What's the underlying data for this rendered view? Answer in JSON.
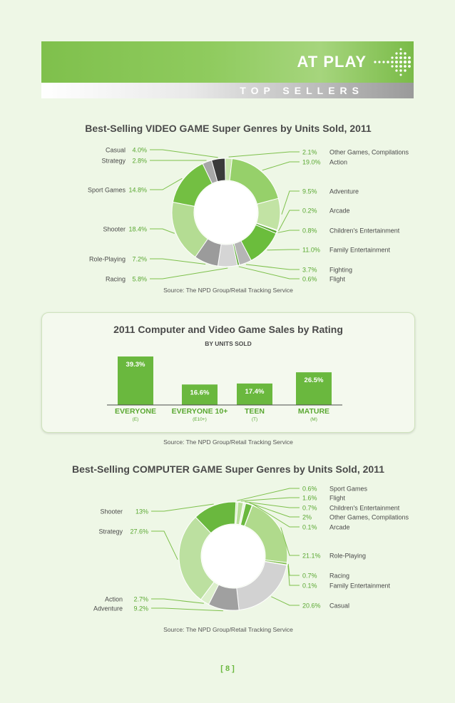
{
  "header": {
    "title": "AT PLAY",
    "subtitle": "TOP SELLERS"
  },
  "colors": {
    "accent": "#7dc04b",
    "dark_green": "#5aa832",
    "light_green": "#b8de98",
    "gray": "#9d9d9d",
    "dark_gray": "#3a3a3a",
    "pale": "#d8ecc6"
  },
  "icons": {
    "header_arrow": "dotted-arrow-icon"
  },
  "chart_data": [
    {
      "type": "pie",
      "title": "Best-Selling VIDEO GAME Super Genres by Units Sold, 2011",
      "source": "Source: The NPD Group/Retail Tracking Service",
      "slices": [
        {
          "label": "Other Games, Compilations",
          "value": 2.1,
          "value_label": "2.1%",
          "color": "#c9e6ad",
          "side": "right"
        },
        {
          "label": "Action",
          "value": 19.0,
          "value_label": "19.0%",
          "color": "#96d06a",
          "side": "right"
        },
        {
          "label": "Adventure",
          "value": 9.5,
          "value_label": "9.5%",
          "color": "#c2e3a4",
          "side": "right"
        },
        {
          "label": "Arcade",
          "value": 0.2,
          "value_label": "0.2%",
          "color": "#e3f2d5",
          "side": "right"
        },
        {
          "label": "Children's Entertainment",
          "value": 0.8,
          "value_label": "0.8%",
          "color": "#5aa832",
          "side": "right"
        },
        {
          "label": "Family Entertainment",
          "value": 11.0,
          "value_label": "11.0%",
          "color": "#6bbd3c",
          "side": "right"
        },
        {
          "label": "Fighting",
          "value": 3.7,
          "value_label": "3.7%",
          "color": "#b5b5b5",
          "side": "right"
        },
        {
          "label": "Flight",
          "value": 0.6,
          "value_label": "0.6%",
          "color": "#5aa832",
          "side": "right"
        },
        {
          "label": "Racing",
          "value": 5.8,
          "value_label": "5.8%",
          "color": "#d5d5d5",
          "side": "left"
        },
        {
          "label": "Role-Playing",
          "value": 7.2,
          "value_label": "7.2%",
          "color": "#9b9b9b",
          "side": "left"
        },
        {
          "label": "Shooter",
          "value": 18.4,
          "value_label": "18.4%",
          "color": "#b4dc93",
          "side": "left"
        },
        {
          "label": "Sport Games",
          "value": 14.8,
          "value_label": "14.8%",
          "color": "#73bf42",
          "side": "left"
        },
        {
          "label": "Strategy",
          "value": 2.8,
          "value_label": "2.8%",
          "color": "#a7a7a7",
          "side": "left"
        },
        {
          "label": "Casual",
          "value": 4.0,
          "value_label": "4.0%",
          "color": "#3a3a3a",
          "side": "left"
        }
      ]
    },
    {
      "type": "bar",
      "title": "2011 Computer and Video Game Sales by Rating",
      "subtitle": "BY UNITS SOLD",
      "source": "Source: The NPD Group/Retail Tracking Service",
      "categories": [
        "EVERYONE",
        "EVERYONE 10+",
        "TEEN",
        "MATURE"
      ],
      "category_codes": [
        "(E)",
        "(E10+)",
        "(T)",
        "(M)"
      ],
      "values": [
        39.3,
        16.6,
        17.4,
        26.5
      ],
      "value_labels": [
        "39.3%",
        "16.6%",
        "17.4%",
        "26.5%"
      ],
      "color": "#6ab83e"
    },
    {
      "type": "pie",
      "title": "Best-Selling COMPUTER GAME Super Genres by Units Sold, 2011",
      "source": "Source: The NPD Group/Retail Tracking Service",
      "slices": [
        {
          "label": "Sport Games",
          "value": 0.6,
          "value_label": "0.6%",
          "color": "#d6ecc3",
          "side": "right"
        },
        {
          "label": "Flight",
          "value": 1.6,
          "value_label": "1.6%",
          "color": "#b9df99",
          "side": "right"
        },
        {
          "label": "Children's Entertainment",
          "value": 0.7,
          "value_label": "0.7%",
          "color": "#e8f4dd",
          "side": "right"
        },
        {
          "label": "Other Games, Compilations",
          "value": 2.0,
          "value_label": "2%",
          "color": "#6ab83e",
          "side": "right"
        },
        {
          "label": "Arcade",
          "value": 0.1,
          "value_label": "0.1%",
          "color": "#5aa832",
          "side": "right"
        },
        {
          "label": "Role-Playing",
          "value": 21.1,
          "value_label": "21.1%",
          "color": "#b0da8c",
          "side": "right"
        },
        {
          "label": "Racing",
          "value": 0.7,
          "value_label": "0.7%",
          "color": "#8cc45e",
          "side": "right"
        },
        {
          "label": "Family Entertainment",
          "value": 0.1,
          "value_label": "0.1%",
          "color": "#5aa832",
          "side": "right"
        },
        {
          "label": "Casual",
          "value": 20.6,
          "value_label": "20.6%",
          "color": "#d2d2d2",
          "side": "right"
        },
        {
          "label": "Adventure",
          "value": 9.2,
          "value_label": "9.2%",
          "color": "#a0a0a0",
          "side": "left"
        },
        {
          "label": "Action",
          "value": 2.7,
          "value_label": "2.7%",
          "color": "#dcefcb",
          "side": "left"
        },
        {
          "label": "Strategy",
          "value": 27.6,
          "value_label": "27.6%",
          "color": "#bce0a0",
          "side": "left"
        },
        {
          "label": "Shooter",
          "value": 13.0,
          "value_label": "13%",
          "color": "#6ab83e",
          "side": "left"
        }
      ]
    }
  ],
  "footer": {
    "page_number": "[ 8 ]"
  }
}
